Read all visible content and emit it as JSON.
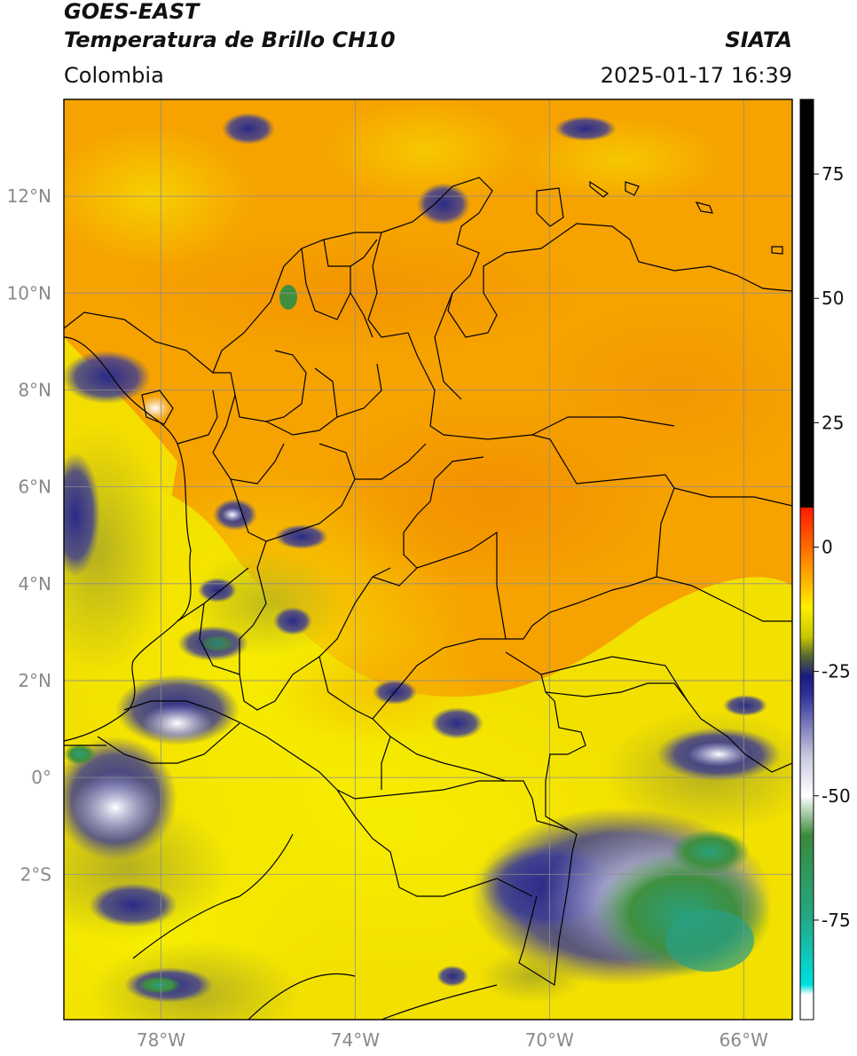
{
  "header": {
    "satellite": "GOES-EAST",
    "product": "Temperatura de Brillo CH10",
    "brand": "SIATA",
    "region": "Colombia",
    "datetime": "2025-01-17 16:39"
  },
  "map": {
    "lon_range": [
      -80,
      -65
    ],
    "lat_range": [
      -5,
      14
    ],
    "lat_ticks": [
      {
        "value": 12,
        "label": "12°N"
      },
      {
        "value": 10,
        "label": "10°N"
      },
      {
        "value": 8,
        "label": "8°N"
      },
      {
        "value": 6,
        "label": "6°N"
      },
      {
        "value": 4,
        "label": "4°N"
      },
      {
        "value": 2,
        "label": "2°N"
      },
      {
        "value": 0,
        "label": "0°"
      },
      {
        "value": -2,
        "label": "2°S"
      }
    ],
    "lon_ticks": [
      {
        "value": -78,
        "label": "78°W"
      },
      {
        "value": -74,
        "label": "74°W"
      },
      {
        "value": -70,
        "label": "70°W"
      },
      {
        "value": -66,
        "label": "66°W"
      }
    ],
    "grid": true
  },
  "colorbar": {
    "range": [
      -95,
      90
    ],
    "ticks": [
      {
        "value": 75,
        "label": "75"
      },
      {
        "value": 50,
        "label": "50"
      },
      {
        "value": 25,
        "label": "25"
      },
      {
        "value": 0,
        "label": "0"
      },
      {
        "value": -25,
        "label": "-25"
      },
      {
        "value": -50,
        "label": "-50"
      },
      {
        "value": -75,
        "label": "-75"
      }
    ],
    "stops": [
      {
        "value": 90,
        "color": "#000000"
      },
      {
        "value": 8,
        "color": "#000000"
      },
      {
        "value": 7.9,
        "color": "#ff1a00"
      },
      {
        "value": 0,
        "color": "#ff6a00"
      },
      {
        "value": -12,
        "color": "#ffee00"
      },
      {
        "value": -18,
        "color": "#c8c800"
      },
      {
        "value": -22,
        "color": "#556633"
      },
      {
        "value": -26,
        "color": "#1a1a80"
      },
      {
        "value": -30,
        "color": "#333399"
      },
      {
        "value": -42,
        "color": "#c8c8e0"
      },
      {
        "value": -50,
        "color": "#ffffff"
      },
      {
        "value": -58,
        "color": "#3a8a3a"
      },
      {
        "value": -75,
        "color": "#22aa88"
      },
      {
        "value": -88,
        "color": "#00e0e0"
      },
      {
        "value": -90,
        "color": "#ffffff"
      },
      {
        "value": -95,
        "color": "#ffffff"
      }
    ]
  },
  "colors": {
    "ocean_warm": "#f7a500",
    "land_yellow": "#f5e600",
    "land_orange": "#f29400",
    "cloud_navy": "#22227a",
    "cloud_white": "#f4f4ff",
    "cloud_green": "#3f8f3f",
    "border": "#000000",
    "grid": "#999999"
  }
}
